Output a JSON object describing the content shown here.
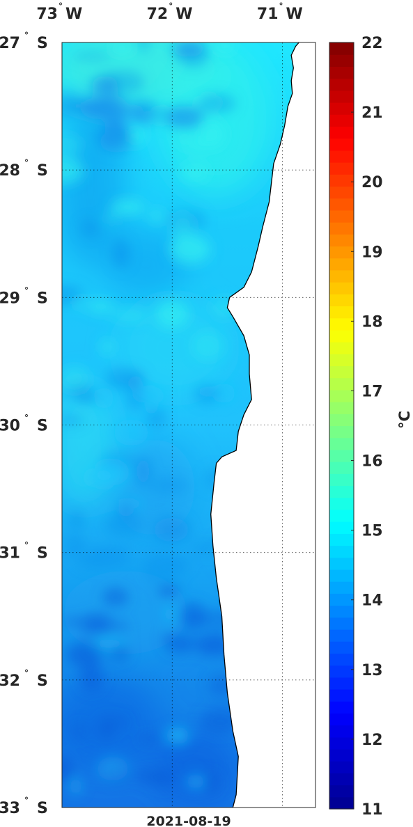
{
  "map": {
    "lon_labels": [
      {
        "deg": "73",
        "hemi": "W",
        "value": -73
      },
      {
        "deg": "72",
        "hemi": "W",
        "value": -72
      },
      {
        "deg": "71",
        "hemi": "W",
        "value": -71
      }
    ],
    "lat_labels": [
      {
        "deg": "27",
        "hemi": "S",
        "value": -27
      },
      {
        "deg": "28",
        "hemi": "S",
        "value": -28
      },
      {
        "deg": "29",
        "hemi": "S",
        "value": -29
      },
      {
        "deg": "30",
        "hemi": "S",
        "value": -30
      },
      {
        "deg": "31",
        "hemi": "S",
        "value": -31
      },
      {
        "deg": "32",
        "hemi": "S",
        "value": -32
      },
      {
        "deg": "33",
        "hemi": "S",
        "value": -33
      }
    ],
    "lon_range": [
      -73.0,
      -70.7
    ],
    "lat_range": [
      -33.0,
      -27.0
    ],
    "date": "2021-08-19",
    "coastline": [
      [
        -70.85,
        -27.0
      ],
      [
        -70.88,
        -27.03
      ],
      [
        -70.92,
        -27.1
      ],
      [
        -70.9,
        -27.2
      ],
      [
        -70.92,
        -27.3
      ],
      [
        -70.91,
        -27.4
      ],
      [
        -70.95,
        -27.5
      ],
      [
        -70.98,
        -27.65
      ],
      [
        -71.02,
        -27.8
      ],
      [
        -71.08,
        -27.95
      ],
      [
        -71.1,
        -28.1
      ],
      [
        -71.12,
        -28.25
      ],
      [
        -71.18,
        -28.45
      ],
      [
        -71.22,
        -28.6
      ],
      [
        -71.28,
        -28.8
      ],
      [
        -71.35,
        -28.92
      ],
      [
        -71.48,
        -29.0
      ],
      [
        -71.5,
        -29.08
      ],
      [
        -71.45,
        -29.15
      ],
      [
        -71.35,
        -29.3
      ],
      [
        -71.3,
        -29.45
      ],
      [
        -71.3,
        -29.6
      ],
      [
        -71.28,
        -29.8
      ],
      [
        -71.35,
        -29.92
      ],
      [
        -71.4,
        -30.05
      ],
      [
        -71.42,
        -30.2
      ],
      [
        -71.55,
        -30.25
      ],
      [
        -71.6,
        -30.3
      ],
      [
        -71.62,
        -30.45
      ],
      [
        -71.65,
        -30.7
      ],
      [
        -71.63,
        -30.95
      ],
      [
        -71.6,
        -31.2
      ],
      [
        -71.55,
        -31.5
      ],
      [
        -71.53,
        -31.8
      ],
      [
        -71.5,
        -32.1
      ],
      [
        -71.45,
        -32.4
      ],
      [
        -71.4,
        -32.6
      ],
      [
        -71.42,
        -32.9
      ],
      [
        -71.45,
        -33.0
      ]
    ]
  },
  "colorbar": {
    "min": 11,
    "max": 22,
    "tick_labels": [
      "11",
      "12",
      "13",
      "14",
      "15",
      "16",
      "17",
      "18",
      "19",
      "20",
      "21",
      "22"
    ],
    "unit_label": "°C",
    "colormap": [
      "#00008f",
      "#0000ff",
      "#007fff",
      "#00ffff",
      "#7fff7f",
      "#ffff00",
      "#ff7f00",
      "#ff0000",
      "#800000"
    ]
  },
  "sst_field": {
    "unit": "°C",
    "typical_range": [
      12.5,
      15.3
    ],
    "warm_region": "north-central coastal band near 27–28° S",
    "cool_region": "southern offshore area near 32–33° S"
  }
}
